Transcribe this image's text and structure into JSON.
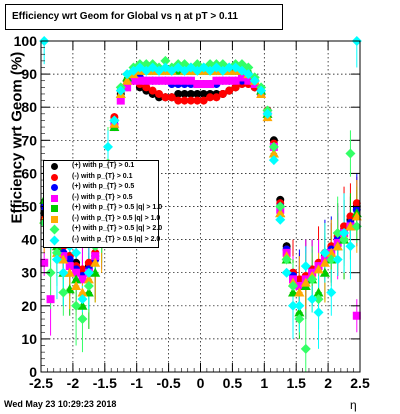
{
  "title": "Efficiency wrt Geom for Global vs   η at pT > 0.11",
  "footer": "Wed May 23 10:29:23 2018",
  "chart_data": {
    "type": "scatter",
    "xlabel": "η",
    "ylabel": "Efficiency wrt Geom (%)",
    "xlim": [
      -2.5,
      2.5
    ],
    "ylim": [
      0,
      100
    ],
    "xticks": [
      "-2.5",
      "-2",
      "-1.5",
      "-1",
      "-0.5",
      "0",
      "0.5",
      "1",
      "1.5",
      "2",
      "2.5"
    ],
    "yticks": [
      "0",
      "10",
      "20",
      "30",
      "40",
      "50",
      "60",
      "70",
      "80",
      "90",
      "100"
    ],
    "grid": true,
    "legend_position": "left-middle",
    "series": [
      {
        "name": "(+) with p_{T} > 0.1",
        "color": "#000000",
        "marker": "circle",
        "x": [
          -2.45,
          -2.35,
          -2.25,
          -2.15,
          -2.05,
          -1.95,
          -1.85,
          -1.75,
          -1.65,
          -1.55,
          -1.45,
          -1.35,
          -1.25,
          -1.15,
          -1.05,
          -0.95,
          -0.85,
          -0.75,
          -0.65,
          -0.55,
          -0.45,
          -0.35,
          -0.25,
          -0.15,
          -0.05,
          0.05,
          0.15,
          0.25,
          0.35,
          0.45,
          0.55,
          0.65,
          0.75,
          0.85,
          0.95,
          1.05,
          1.15,
          1.25,
          1.35,
          1.45,
          1.55,
          1.65,
          1.75,
          1.85,
          1.95,
          2.05,
          2.15,
          2.25,
          2.35,
          2.45
        ],
        "y": [
          48,
          45,
          43,
          38,
          35,
          33,
          30,
          32,
          35,
          42,
          62,
          76,
          84,
          88,
          88,
          86,
          85,
          84,
          83,
          83,
          83,
          84,
          84,
          84,
          84,
          84,
          84,
          84,
          84,
          85,
          86,
          88,
          88,
          86,
          84,
          79,
          70,
          52,
          38,
          30,
          27,
          28,
          30,
          32,
          35,
          37,
          40,
          43,
          46,
          50
        ]
      },
      {
        "name": "(-) with p_{T} > 0.1",
        "color": "#ff0000",
        "marker": "circle",
        "x": [
          -2.45,
          -2.35,
          -2.25,
          -2.15,
          -2.05,
          -1.95,
          -1.85,
          -1.75,
          -1.65,
          -1.55,
          -1.45,
          -1.35,
          -1.25,
          -1.15,
          -1.05,
          -0.95,
          -0.85,
          -0.75,
          -0.65,
          -0.55,
          -0.45,
          -0.35,
          -0.25,
          -0.15,
          -0.05,
          0.05,
          0.15,
          0.25,
          0.35,
          0.45,
          0.55,
          0.65,
          0.75,
          0.85,
          0.95,
          1.05,
          1.15,
          1.25,
          1.35,
          1.45,
          1.55,
          1.65,
          1.75,
          1.85,
          1.95,
          2.05,
          2.15,
          2.25,
          2.35,
          2.45
        ],
        "y": [
          46,
          44,
          41,
          38,
          35,
          32,
          31,
          33,
          36,
          44,
          63,
          77,
          85,
          88,
          88,
          87,
          86,
          85,
          84,
          83,
          83,
          82,
          82,
          82,
          82,
          82,
          83,
          83,
          84,
          85,
          86,
          87,
          87,
          86,
          84,
          79,
          69,
          51,
          37,
          30,
          28,
          29,
          31,
          33,
          36,
          38,
          41,
          44,
          47,
          51
        ]
      },
      {
        "name": "(+) with p_{T} > 0.5",
        "color": "#0000ff",
        "marker": "circle",
        "x": [
          -2.45,
          -2.35,
          -2.25,
          -2.15,
          -2.05,
          -1.95,
          -1.85,
          -1.75,
          -1.65,
          -1.55,
          -1.45,
          -1.35,
          -1.25,
          -1.15,
          -1.05,
          -0.95,
          -0.85,
          -0.75,
          -0.65,
          -0.55,
          -0.45,
          -0.35,
          -0.25,
          -0.15,
          -0.05,
          0.05,
          0.15,
          0.25,
          0.35,
          0.45,
          0.55,
          0.65,
          0.75,
          0.85,
          0.95,
          1.05,
          1.15,
          1.25,
          1.35,
          1.45,
          1.55,
          1.65,
          1.75,
          1.85,
          1.95,
          2.05,
          2.15,
          2.25,
          2.35,
          2.45
        ],
        "y": [
          50,
          44,
          40,
          36,
          34,
          31,
          29,
          31,
          34,
          41,
          61,
          75,
          83,
          87,
          89,
          89,
          88,
          88,
          88,
          88,
          87,
          87,
          87,
          87,
          87,
          87,
          87,
          87,
          88,
          88,
          88,
          88,
          88,
          87,
          84,
          78,
          68,
          50,
          37,
          29,
          26,
          27,
          30,
          32,
          34,
          37,
          40,
          42,
          45,
          49
        ]
      },
      {
        "name": "(-) with p_{T} > 0.5",
        "color": "#ff00ff",
        "marker": "square",
        "x": [
          -2.45,
          -2.35,
          -2.25,
          -2.15,
          -2.05,
          -1.95,
          -1.85,
          -1.75,
          -1.65,
          -1.55,
          -1.45,
          -1.35,
          -1.25,
          -1.15,
          -1.05,
          -0.95,
          -0.85,
          -0.75,
          -0.65,
          -0.55,
          -0.45,
          -0.35,
          -0.25,
          -0.15,
          -0.05,
          0.05,
          0.15,
          0.25,
          0.35,
          0.45,
          0.55,
          0.65,
          0.75,
          0.85,
          0.95,
          1.05,
          1.15,
          1.25,
          1.35,
          1.45,
          1.55,
          1.65,
          1.75,
          1.85,
          1.95,
          2.05,
          2.15,
          2.25,
          2.35,
          2.45
        ],
        "y": [
          33,
          22,
          38,
          35,
          32,
          30,
          28,
          30,
          35,
          43,
          60,
          74,
          82,
          86,
          88,
          88,
          88,
          88,
          88,
          88,
          88,
          88,
          88,
          88,
          87,
          87,
          87,
          88,
          88,
          88,
          88,
          89,
          88,
          87,
          84,
          78,
          68,
          49,
          36,
          28,
          26,
          28,
          30,
          32,
          34,
          36,
          39,
          42,
          44,
          17
        ]
      },
      {
        "name": "(+) with p_{T} > 0.5 |q| > 1.0",
        "color": "#00cc00",
        "marker": "triangle",
        "x": [
          -2.45,
          -2.35,
          -2.25,
          -2.15,
          -2.05,
          -1.95,
          -1.85,
          -1.75,
          -1.65,
          -1.55,
          -1.45,
          -1.35,
          -1.25,
          -1.15,
          -1.05,
          -0.95,
          -0.85,
          -0.75,
          -0.65,
          -0.55,
          -0.45,
          -0.35,
          -0.25,
          -0.15,
          -0.05,
          0.05,
          0.15,
          0.25,
          0.35,
          0.45,
          0.55,
          0.65,
          0.75,
          0.85,
          0.95,
          1.05,
          1.15,
          1.25,
          1.35,
          1.45,
          1.55,
          1.65,
          1.75,
          1.85,
          1.95,
          2.05,
          2.15,
          2.25,
          2.35,
          2.45
        ],
        "y": [
          52,
          42,
          38,
          30,
          25,
          28,
          20,
          24,
          30,
          40,
          58,
          74,
          84,
          89,
          91,
          91,
          91,
          91,
          91,
          91,
          91,
          91,
          91,
          91,
          91,
          91,
          91,
          91,
          91,
          91,
          91,
          91,
          91,
          89,
          85,
          78,
          66,
          48,
          34,
          24,
          18,
          26,
          28,
          24,
          30,
          34,
          38,
          40,
          44,
          48
        ]
      },
      {
        "name": "(-) with p_{T} > 0.5 |q| > 1.0",
        "color": "#ffaa00",
        "marker": "triangle",
        "x": [
          -2.45,
          -2.35,
          -2.25,
          -2.15,
          -2.05,
          -1.95,
          -1.85,
          -1.75,
          -1.65,
          -1.55,
          -1.45,
          -1.35,
          -1.25,
          -1.15,
          -1.05,
          -0.95,
          -0.85,
          -0.75,
          -0.65,
          -0.55,
          -0.45,
          -0.35,
          -0.25,
          -0.15,
          -0.05,
          0.05,
          0.15,
          0.25,
          0.35,
          0.45,
          0.55,
          0.65,
          0.75,
          0.85,
          0.95,
          1.05,
          1.15,
          1.25,
          1.35,
          1.45,
          1.55,
          1.65,
          1.75,
          1.85,
          1.95,
          2.05,
          2.15,
          2.25,
          2.35,
          2.45
        ],
        "y": [
          46,
          40,
          36,
          34,
          30,
          26,
          24,
          28,
          33,
          40,
          60,
          75,
          84,
          88,
          90,
          91,
          91,
          91,
          91,
          91,
          91,
          92,
          91,
          91,
          91,
          91,
          91,
          91,
          91,
          91,
          91,
          91,
          90,
          88,
          84,
          77,
          66,
          48,
          35,
          27,
          24,
          27,
          29,
          31,
          33,
          36,
          38,
          41,
          44,
          47
        ]
      },
      {
        "name": "(+) with p_{T} > 0.5 |q| > 2.0",
        "color": "#33ff66",
        "marker": "diamond",
        "x": [
          -2.45,
          -2.35,
          -2.25,
          -2.15,
          -2.05,
          -1.95,
          -1.85,
          -1.75,
          -1.65,
          -1.55,
          -1.45,
          -1.35,
          -1.25,
          -1.15,
          -1.05,
          -0.95,
          -0.85,
          -0.75,
          -0.65,
          -0.55,
          -0.45,
          -0.35,
          -0.25,
          -0.15,
          -0.05,
          0.05,
          0.15,
          0.25,
          0.35,
          0.45,
          0.55,
          0.65,
          0.75,
          0.85,
          0.95,
          1.05,
          1.15,
          1.25,
          1.35,
          1.45,
          1.55,
          1.65,
          1.75,
          1.85,
          1.95,
          2.05,
          2.15,
          2.25,
          2.35,
          2.45
        ],
        "y": [
          45,
          30,
          36,
          24,
          40,
          20,
          16,
          26,
          38,
          40,
          63,
          76,
          86,
          90,
          92,
          93,
          93,
          93,
          92,
          94,
          92,
          93,
          93,
          92,
          93,
          92,
          93,
          93,
          93,
          92,
          93,
          93,
          92,
          89,
          86,
          79,
          68,
          50,
          34,
          26,
          16,
          7,
          28,
          22,
          36,
          34,
          42,
          40,
          66,
          44
        ]
      },
      {
        "name": "(-) with p_{T} > 0.5 |q| > 2.0",
        "color": "#00ffff",
        "marker": "diamond",
        "x": [
          -2.45,
          -2.35,
          -2.25,
          -2.15,
          -2.05,
          -1.95,
          -1.85,
          -1.75,
          -1.65,
          -1.55,
          -1.45,
          -1.35,
          -1.25,
          -1.15,
          -1.05,
          -0.95,
          -0.85,
          -0.75,
          -0.65,
          -0.55,
          -0.45,
          -0.35,
          -0.25,
          -0.15,
          -0.05,
          0.05,
          0.15,
          0.25,
          0.35,
          0.45,
          0.55,
          0.65,
          0.75,
          0.85,
          0.95,
          1.05,
          1.15,
          1.25,
          1.35,
          1.45,
          1.55,
          1.65,
          1.75,
          1.85,
          1.95,
          2.05,
          2.15,
          2.25,
          2.35,
          2.45
        ],
        "y": [
          100,
          42,
          34,
          30,
          38,
          36,
          22,
          30,
          40,
          46,
          68,
          76,
          85,
          90,
          91,
          92,
          91,
          92,
          91,
          92,
          91,
          92,
          91,
          92,
          91,
          92,
          91,
          92,
          91,
          92,
          92,
          91,
          90,
          88,
          85,
          78,
          64,
          46,
          30,
          20,
          20,
          32,
          22,
          18,
          36,
          24,
          34,
          42,
          38,
          100
        ]
      }
    ]
  }
}
